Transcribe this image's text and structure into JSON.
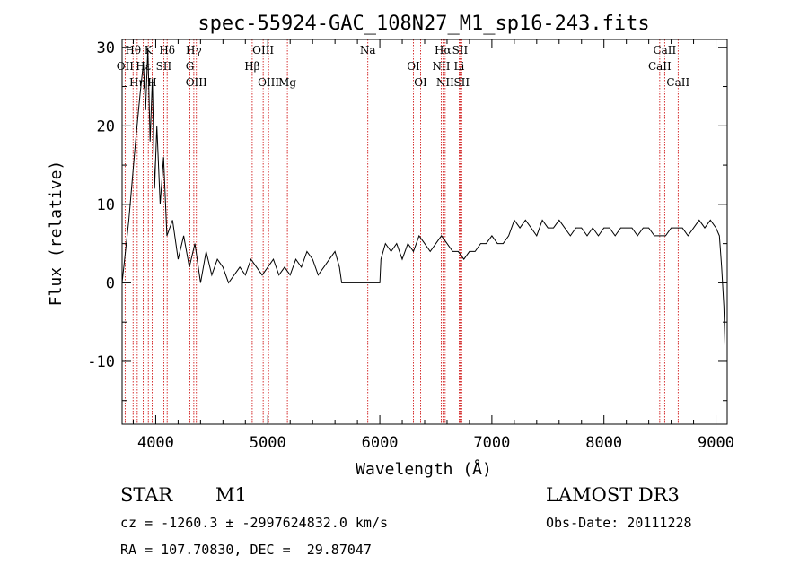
{
  "chart_data": {
    "type": "line",
    "title": "spec-55924-GAC_108N27_M1_sp16-243.fits",
    "xlabel": "Wavelength (Å)",
    "ylabel": "Flux (relative)",
    "xlim": [
      3700,
      9100
    ],
    "ylim": [
      -18,
      31
    ],
    "xticks": [
      4000,
      5000,
      6000,
      7000,
      8000,
      9000
    ],
    "yticks": [
      -10,
      0,
      10,
      20,
      30
    ],
    "grid": false,
    "series": [
      {
        "color": "#000000",
        "x": [
          3700,
          3760,
          3820,
          3860,
          3890,
          3910,
          3930,
          3950,
          3970,
          3990,
          4010,
          4040,
          4070,
          4100,
          4150,
          4200,
          4250,
          4300,
          4350,
          4400,
          4450,
          4500,
          4550,
          4600,
          4650,
          4700,
          4750,
          4800,
          4850,
          4900,
          4950,
          5000,
          5050,
          5100,
          5150,
          5200,
          5250,
          5300,
          5350,
          5400,
          5450,
          5500,
          5550,
          5600,
          5640,
          5660,
          5700,
          5800,
          5900,
          6000,
          6010,
          6050,
          6100,
          6150,
          6200,
          6250,
          6300,
          6350,
          6400,
          6450,
          6500,
          6550,
          6600,
          6650,
          6700,
          6750,
          6800,
          6850,
          6900,
          6950,
          7000,
          7050,
          7100,
          7150,
          7200,
          7250,
          7300,
          7350,
          7400,
          7450,
          7500,
          7550,
          7600,
          7650,
          7700,
          7750,
          7800,
          7850,
          7900,
          7950,
          8000,
          8050,
          8100,
          8150,
          8200,
          8250,
          8300,
          8350,
          8400,
          8450,
          8500,
          8550,
          8600,
          8650,
          8700,
          8750,
          8800,
          8850,
          8900,
          8950,
          9000,
          9030,
          9050,
          9070,
          9080
        ],
        "y": [
          0,
          8,
          18,
          24,
          28,
          22,
          30,
          18,
          26,
          12,
          20,
          10,
          16,
          6,
          8,
          3,
          6,
          2,
          5,
          0,
          4,
          1,
          3,
          2,
          0,
          1,
          2,
          1,
          3,
          2,
          1,
          2,
          3,
          1,
          2,
          1,
          3,
          2,
          4,
          3,
          1,
          2,
          3,
          4,
          2,
          0,
          0,
          0,
          0,
          0,
          3,
          5,
          4,
          5,
          3,
          5,
          4,
          6,
          5,
          4,
          5,
          6,
          5,
          4,
          4,
          3,
          4,
          4,
          5,
          5,
          6,
          5,
          5,
          6,
          8,
          7,
          8,
          7,
          6,
          8,
          7,
          7,
          8,
          7,
          6,
          7,
          7,
          6,
          7,
          6,
          7,
          7,
          6,
          7,
          7,
          7,
          6,
          7,
          7,
          6,
          6,
          6,
          7,
          7,
          7,
          6,
          7,
          8,
          7,
          8,
          7,
          6,
          2,
          -3,
          -8
        ]
      }
    ],
    "lines": [
      {
        "label": "Hθ",
        "x": 3798
      },
      {
        "label": "OII",
        "x": 3727
      },
      {
        "label": "Hη",
        "x": 3835
      },
      {
        "label": "K",
        "x": 3934
      },
      {
        "label": "Hε",
        "x": 3889
      },
      {
        "label": "H",
        "x": 3968
      },
      {
        "label": "Hδ",
        "x": 4102
      },
      {
        "label": "SII",
        "x": 4072
      },
      {
        "label": "OIII",
        "x": 4363
      },
      {
        "label": "Hγ",
        "x": 4340
      },
      {
        "label": "G",
        "x": 4305
      },
      {
        "label": "OIII",
        "x": 5007
      },
      {
        "label": "OIII",
        "x": 4959
      },
      {
        "label": "Hβ",
        "x": 4861
      },
      {
        "label": "Mg",
        "x": 5175
      },
      {
        "label": "Na",
        "x": 5893
      },
      {
        "label": "OI",
        "x": 6300
      },
      {
        "label": "OI",
        "x": 6364
      },
      {
        "label": "Hα",
        "x": 6563
      },
      {
        "label": "NII",
        "x": 6548
      },
      {
        "label": "NII",
        "x": 6583
      },
      {
        "label": "SII",
        "x": 6716
      },
      {
        "label": "Li",
        "x": 6708
      },
      {
        "label": "SII",
        "x": 6731
      },
      {
        "label": "CaII",
        "x": 8542
      },
      {
        "label": "CaII",
        "x": 8498
      },
      {
        "label": "CaII",
        "x": 8662
      }
    ]
  },
  "info": {
    "object_type": "STAR",
    "subclass": "M1",
    "survey": "LAMOST DR3",
    "cz_line": "cz = -1260.3 ± -2997624832.0 km/s",
    "obs_date": "Obs-Date: 20111228",
    "radec": "RA = 107.70830, DEC =  29.87047"
  }
}
